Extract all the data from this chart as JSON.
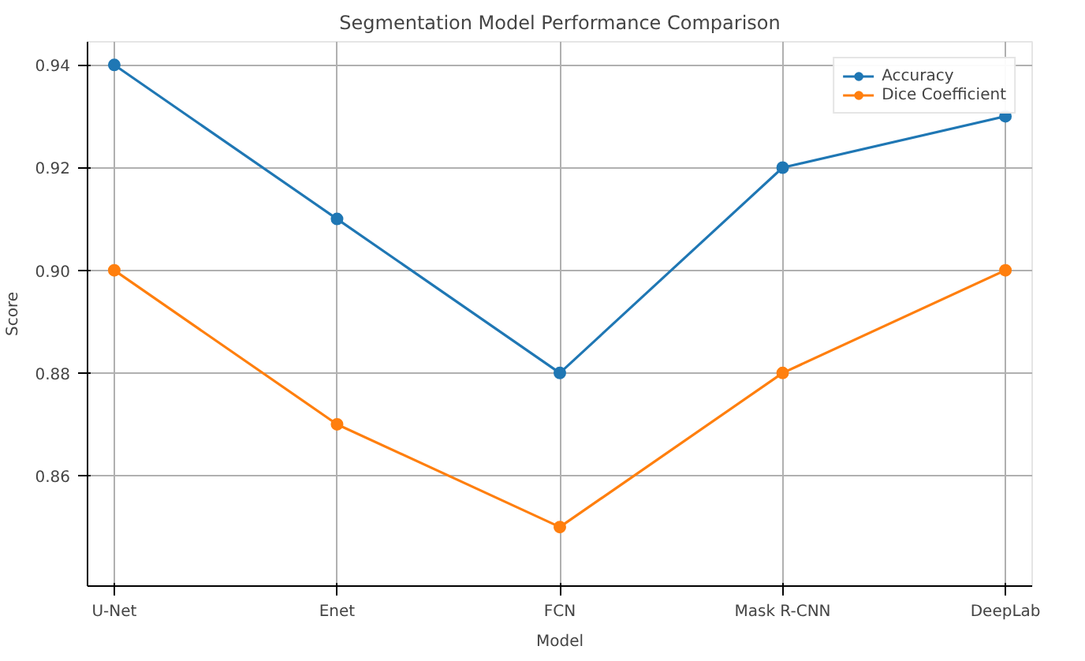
{
  "chart_data": {
    "type": "line",
    "title": "Segmentation Model Performance Comparison",
    "xlabel": "Model",
    "ylabel": "Score",
    "categories": [
      "U-Net",
      "Enet",
      "FCN",
      "Mask R-CNN",
      "DeepLab"
    ],
    "series": [
      {
        "name": "Accuracy",
        "color": "#1f77b4",
        "values": [
          0.94,
          0.91,
          0.88,
          0.92,
          0.93
        ]
      },
      {
        "name": "Dice Coefficient",
        "color": "#ff7f0e",
        "values": [
          0.9,
          0.87,
          0.85,
          0.88,
          0.9
        ]
      }
    ],
    "ylim": [
      0.8385,
      0.9445
    ],
    "yticks": [
      0.86,
      0.88,
      {
        "value": 0.9,
        "label": "0.90"
      },
      0.92,
      0.94
    ],
    "grid": true,
    "legend": "top right",
    "marker": "circle",
    "line_style": "solid"
  }
}
